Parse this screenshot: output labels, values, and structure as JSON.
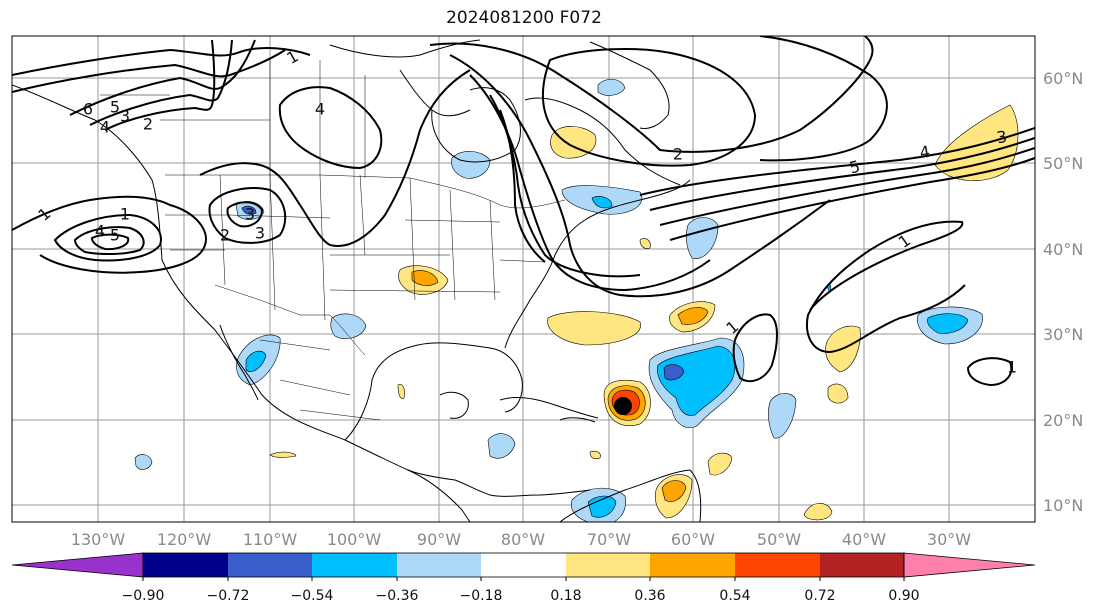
{
  "title": "2024081200 F072",
  "lon_labels": [
    "130°W",
    "120°W",
    "110°W",
    "100°W",
    "90°W",
    "80°W",
    "70°W",
    "60°W",
    "50°W",
    "40°W",
    "30°W"
  ],
  "lat_labels": [
    "60°N",
    "50°N",
    "40°N",
    "30°N",
    "20°N",
    "10°N"
  ],
  "colorbar": {
    "tick_labels": [
      "−0.90",
      "−0.72",
      "−0.54",
      "−0.36",
      "−0.18",
      "0.18",
      "0.36",
      "0.54",
      "0.72",
      "0.90"
    ],
    "colors": [
      "#9932cc",
      "#00008b",
      "#3a5fcd",
      "#00bfff",
      "#add8f7",
      "#ffffff",
      "#ffe680",
      "#ffa500",
      "#ff4500",
      "#b22222",
      "#ff80aa"
    ]
  },
  "contour_labels": [
    "1",
    "2",
    "3",
    "4",
    "5",
    "6",
    "5",
    "4",
    "3",
    "2",
    "1",
    "3",
    "4",
    "5",
    "1",
    "4",
    "3",
    "2",
    "1",
    "1",
    "1"
  ],
  "fill_colors": {
    "light_blue": "#add8f7",
    "blue": "#00bfff",
    "dark_blue": "#3a5fcd",
    "yellow": "#ffe680",
    "orange": "#ffa500",
    "red": "#ff4500"
  }
}
